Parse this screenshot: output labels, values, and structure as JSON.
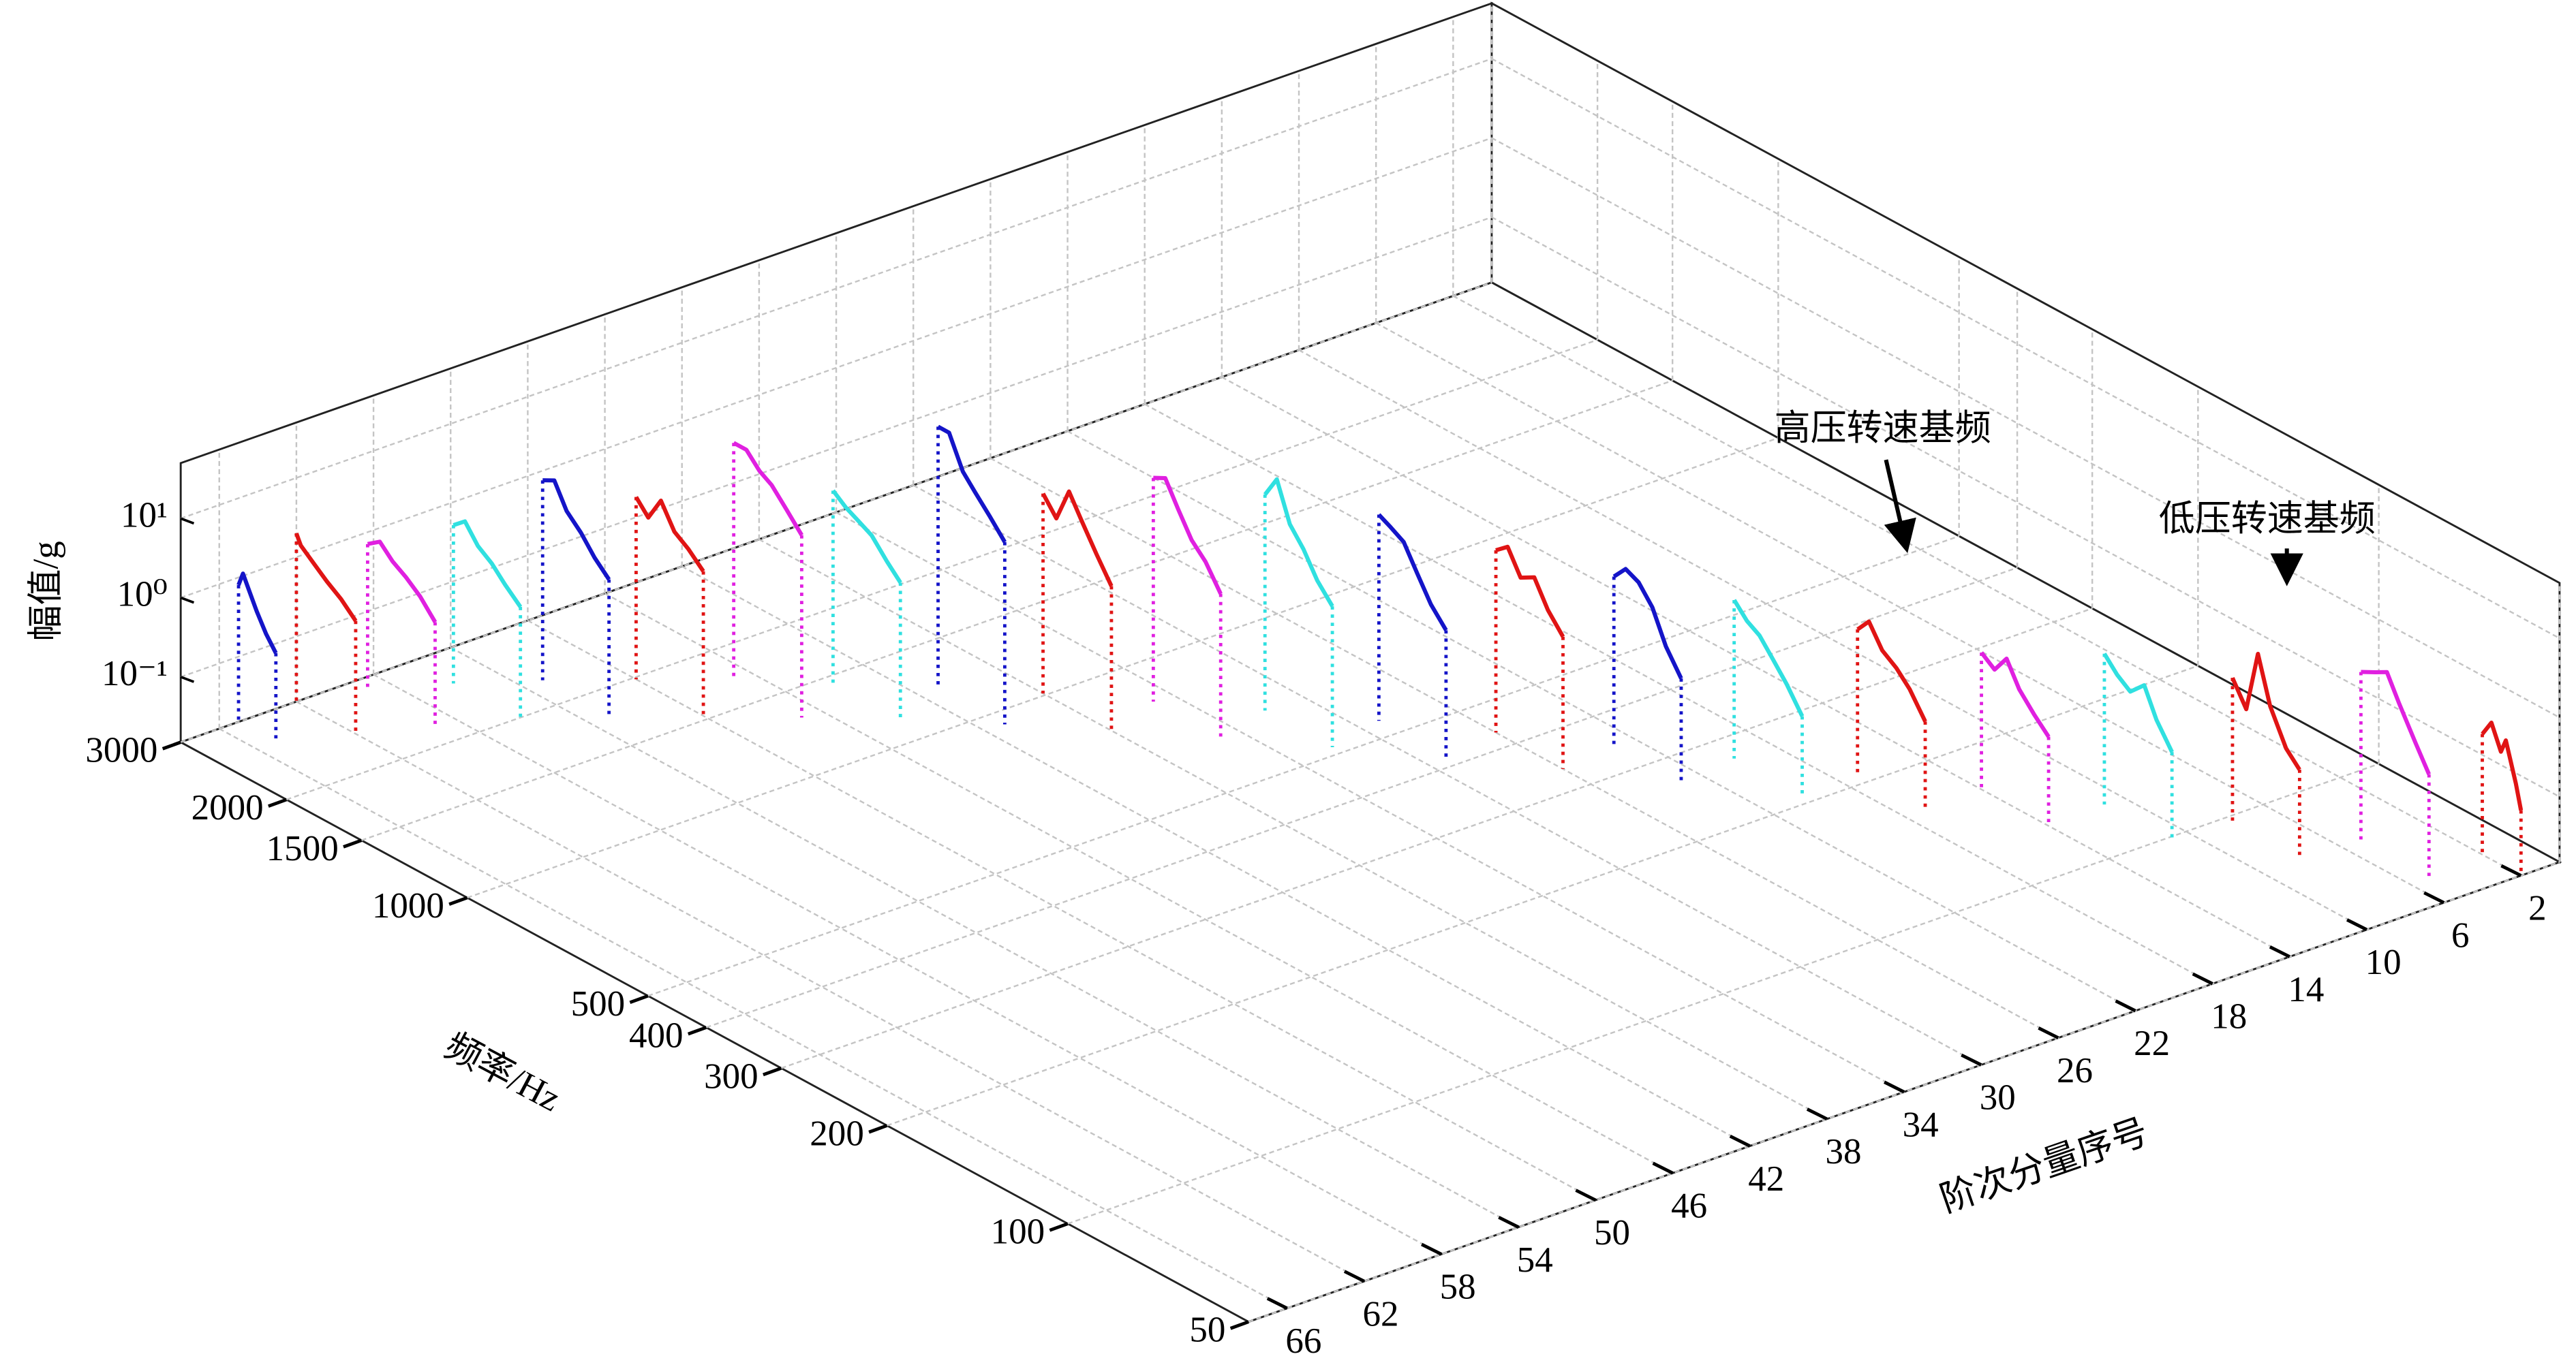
{
  "chart_data": {
    "type": "line3d",
    "xlabel": "频率/Hz",
    "ylabel": "阶次分量序号",
    "zlabel": "幅值/g",
    "xscale": "log",
    "zscale": "log",
    "grid": true,
    "xlim": [
      3000,
      50
    ],
    "xticks": [
      3000,
      2000,
      1500,
      1000,
      500,
      400,
      300,
      200,
      100,
      50
    ],
    "ylim": [
      68,
      0
    ],
    "yticks": [
      66,
      62,
      58,
      54,
      50,
      46,
      42,
      38,
      34,
      30,
      26,
      22,
      18,
      14,
      10,
      6,
      2
    ],
    "zlim": [
      0.015,
      50
    ],
    "zticks": [
      {
        "value": 0.1,
        "label": "10⁻¹"
      },
      {
        "value": 1,
        "label": "10⁰"
      },
      {
        "value": 10,
        "label": "10¹"
      }
    ],
    "annotations": [
      "高压转速基频",
      "低压转速基频"
    ],
    "series": [
      {
        "order": 65,
        "color": "#1414c8",
        "x": [
          3000,
          2950,
          2900,
          2800,
          2700,
          2600
        ],
        "values": [
          0.8,
          1.2,
          0.9,
          0.5,
          0.3,
          0.2
        ]
      },
      {
        "order": 62,
        "color": "#e01414",
        "x": [
          3000,
          2950,
          2810,
          2670,
          2530,
          2390
        ],
        "values": [
          2,
          1.5,
          1.1,
          0.8,
          0.6,
          0.4
        ]
      },
      {
        "order": 59,
        "color": "#e020e0",
        "x": [
          2850,
          2720,
          2590,
          2460,
          2330,
          2200
        ],
        "values": [
          1,
          1.3,
          0.9,
          0.7,
          0.5,
          0.3
        ]
      },
      {
        "order": 56,
        "color": "#30e0e0",
        "x": [
          2560,
          2450,
          2330,
          2210,
          2100,
          1980
        ],
        "values": [
          1.5,
          2,
          1.2,
          0.9,
          0.6,
          0.4
        ]
      },
      {
        "order": 53,
        "color": "#1414c8",
        "x": [
          2270,
          2170,
          2070,
          1960,
          1860,
          1760
        ],
        "values": [
          5,
          6,
          3,
          2,
          1.2,
          0.8
        ]
      },
      {
        "order": 50,
        "color": "#e01414",
        "x": [
          1980,
          1890,
          1800,
          1710,
          1620,
          1530
        ],
        "values": [
          3,
          2,
          4,
          2,
          1.5,
          1
        ]
      },
      {
        "order": 47,
        "color": "#e020e0",
        "x": [
          1700,
          1620,
          1540,
          1470,
          1390,
          1310
        ],
        "values": [
          15,
          15,
          10,
          8,
          5,
          3
        ]
      },
      {
        "order": 44,
        "color": "#30e0e0",
        "x": [
          1450,
          1380,
          1320,
          1250,
          1180,
          1120
        ],
        "values": [
          4,
          3,
          2.5,
          2,
          1.2,
          0.8
        ]
      },
      {
        "order": 41,
        "color": "#1414c8",
        "x": [
          1210,
          1160,
          1100,
          1050,
          992,
          937
        ],
        "values": [
          30,
          30,
          12,
          8,
          5,
          3
        ]
      },
      {
        "order": 38,
        "color": "#e01414",
        "x": [
          1010,
          960,
          914,
          868,
          823,
          777
        ],
        "values": [
          5,
          3,
          8,
          4,
          2,
          1
        ]
      },
      {
        "order": 35,
        "color": "#e020e0",
        "x": [
          826,
          789,
          751,
          713,
          676,
          638
        ],
        "values": [
          10,
          12,
          6,
          3,
          2,
          1
        ]
      },
      {
        "order": 32,
        "color": "#30e0e0",
        "x": [
          672,
          642,
          611,
          580,
          550,
          519
        ],
        "values": [
          8,
          15,
          5,
          3,
          1.5,
          0.9
        ]
      },
      {
        "order": 29,
        "color": "#1414c8",
        "x": [
          542,
          518,
          493,
          468,
          444,
          419
        ],
        "values": [
          6,
          5,
          4,
          2,
          1,
          0.6
        ]
      },
      {
        "order": 26,
        "color": "#e01414",
        "x": [
          432,
          413,
          393,
          373,
          354,
          334
        ],
        "values": [
          3,
          4,
          2,
          2.5,
          1.2,
          0.7
        ]
      },
      {
        "order": 23,
        "color": "#1414c8",
        "x": [
          343,
          328,
          312,
          296,
          281,
          265
        ],
        "values": [
          2,
          3,
          2.5,
          1.5,
          0.6,
          0.3
        ]
      },
      {
        "order": 20,
        "color": "#30e0e0",
        "x": [
          270,
          257,
          245,
          233,
          221,
          208
        ],
        "values": [
          1.5,
          1,
          0.8,
          0.5,
          0.3,
          0.15
        ]
      },
      {
        "order": 17,
        "color": "#e01414",
        "x": [
          210,
          201,
          191,
          181,
          172,
          162
        ],
        "values": [
          1,
          1.5,
          0.8,
          0.6,
          0.4,
          0.2
        ]
      },
      {
        "order": 14,
        "color": "#e020e0",
        "x": [
          163,
          155,
          148,
          141,
          133,
          126
        ],
        "values": [
          0.8,
          0.6,
          1,
          0.5,
          0.3,
          0.2
        ]
      },
      {
        "order": 11,
        "color": "#30e0e0",
        "x": [
          127,
          121,
          115,
          109,
          104,
          98
        ],
        "values": [
          1.2,
          0.8,
          0.6,
          0.9,
          0.4,
          0.2
        ]
      },
      {
        "order": 8,
        "color": "#e01414",
        "x": [
          97,
          92,
          88,
          84,
          79,
          75
        ],
        "values": [
          1,
          0.5,
          3,
          0.8,
          0.3,
          0.2
        ]
      },
      {
        "order": 5,
        "color": "#e020e0",
        "x": [
          74,
          70,
          67,
          64,
          60,
          57
        ],
        "values": [
          2,
          2.5,
          3,
          1.5,
          0.6,
          0.3
        ]
      },
      {
        "order": 2,
        "color": "#e01414",
        "x": [
          58,
          56,
          54,
          53,
          51,
          50
        ],
        "values": [
          0.5,
          0.8,
          0.4,
          0.6,
          0.2,
          0.1
        ]
      }
    ]
  }
}
